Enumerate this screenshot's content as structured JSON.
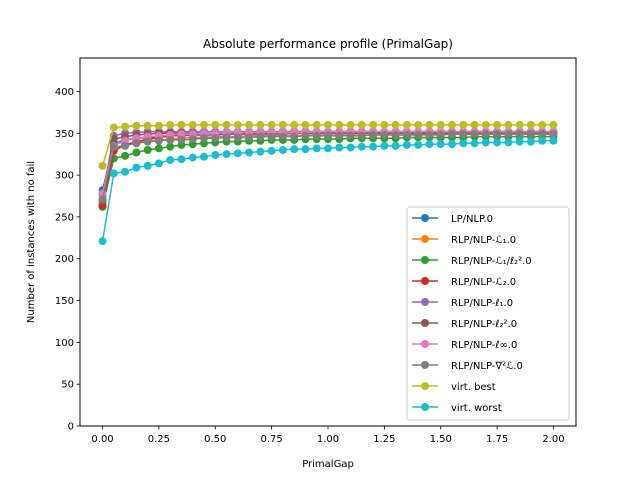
{
  "chart_data": {
    "type": "line",
    "title": "Absolute performance profile (PrimalGap)",
    "xlabel": "PrimalGap",
    "ylabel": "Number of instances with no fail",
    "xlim": [
      -0.1,
      2.1
    ],
    "ylim": [
      0,
      440
    ],
    "xticks": [
      0,
      0.25,
      0.5,
      0.75,
      1.0,
      1.25,
      1.5,
      1.75,
      2.0
    ],
    "xtick_labels": [
      "0.00",
      "0.25",
      "0.50",
      "0.75",
      "1.00",
      "1.25",
      "1.50",
      "1.75",
      "2.00"
    ],
    "yticks": [
      0,
      50,
      100,
      150,
      200,
      250,
      300,
      350,
      400
    ],
    "ytick_labels": [
      "0",
      "50",
      "100",
      "150",
      "200",
      "250",
      "300",
      "350",
      "400"
    ],
    "grid": false,
    "legend_position": "lower-right",
    "x": [
      0,
      0.05,
      0.1,
      0.15,
      0.2,
      0.25,
      0.3,
      0.35,
      0.4,
      0.45,
      0.5,
      0.55,
      0.6,
      0.65,
      0.7,
      0.75,
      0.8,
      0.85,
      0.9,
      0.95,
      1.0,
      1.05,
      1.1,
      1.15,
      1.2,
      1.25,
      1.3,
      1.35,
      1.4,
      1.45,
      1.5,
      1.55,
      1.6,
      1.65,
      1.7,
      1.75,
      1.8,
      1.85,
      1.9,
      1.95,
      2.0
    ],
    "series": [
      {
        "name": "LP/NLP.0",
        "color": "#1f77b4",
        "values": [
          282,
          338,
          342,
          344,
          345,
          346,
          347,
          347,
          348,
          348,
          348,
          349,
          349,
          349,
          349,
          349,
          349,
          350,
          350,
          350,
          350,
          350,
          350,
          350,
          350,
          350,
          350,
          350,
          350,
          350,
          351,
          351,
          351,
          351,
          351,
          351,
          351,
          351,
          351,
          351,
          351
        ]
      },
      {
        "name": "RLP/NLP-ℒ₁.0",
        "color": "#ff7f0e",
        "values": [
          268,
          332,
          336,
          339,
          341,
          342,
          343,
          344,
          345,
          345,
          346,
          346,
          346,
          347,
          347,
          347,
          347,
          347,
          348,
          348,
          348,
          348,
          348,
          348,
          348,
          348,
          348,
          348,
          349,
          349,
          349,
          349,
          349,
          349,
          349,
          349,
          349,
          349,
          349,
          349,
          349
        ]
      },
      {
        "name": "RLP/NLP-ℒ₁/ℓ₂².0",
        "color": "#2ca02c",
        "values": [
          262,
          320,
          323,
          327,
          330,
          332,
          334,
          336,
          337,
          338,
          339,
          340,
          340,
          341,
          341,
          342,
          342,
          342,
          343,
          343,
          343,
          343,
          344,
          344,
          344,
          344,
          344,
          345,
          345,
          345,
          345,
          345,
          345,
          346,
          346,
          346,
          346,
          346,
          346,
          346,
          346
        ]
      },
      {
        "name": "RLP/NLP-ℒ₂.0",
        "color": "#d62728",
        "values": [
          264,
          329,
          336,
          340,
          343,
          345,
          347,
          348,
          349,
          350,
          350,
          350,
          351,
          351,
          351,
          351,
          352,
          352,
          352,
          352,
          352,
          352,
          352,
          352,
          352,
          352,
          352,
          352,
          352,
          352,
          352,
          352,
          352,
          352,
          352,
          352,
          352,
          352,
          352,
          352,
          352
        ]
      },
      {
        "name": "RLP/NLP-ℓ₁.0",
        "color": "#9467bd",
        "values": [
          276,
          347,
          350,
          351,
          352,
          352,
          352,
          352,
          352,
          352,
          352,
          352,
          352,
          352,
          352,
          352,
          352,
          352,
          352,
          352,
          352,
          352,
          352,
          352,
          352,
          352,
          352,
          352,
          352,
          352,
          352,
          352,
          352,
          352,
          352,
          352,
          352,
          352,
          352,
          352,
          352
        ]
      },
      {
        "name": "RLP/NLP-ℓ₂².0",
        "color": "#8c564b",
        "values": [
          270,
          343,
          346,
          348,
          349,
          350,
          350,
          350,
          350,
          350,
          350,
          350,
          350,
          350,
          350,
          350,
          350,
          350,
          350,
          350,
          350,
          350,
          350,
          350,
          350,
          350,
          350,
          350,
          350,
          350,
          350,
          350,
          350,
          350,
          350,
          350,
          350,
          350,
          350,
          350,
          350
        ]
      },
      {
        "name": "RLP/NLP-ℓ∞.0",
        "color": "#e377c2",
        "values": [
          278,
          335,
          341,
          344,
          346,
          347,
          348,
          349,
          349,
          350,
          350,
          351,
          351,
          351,
          351,
          351,
          351,
          351,
          351,
          352,
          352,
          352,
          352,
          352,
          352,
          352,
          352,
          352,
          352,
          352,
          352,
          352,
          352,
          352,
          352,
          352,
          352,
          352,
          352,
          352,
          352
        ]
      },
      {
        "name": "RLP/NLP-∇²ℒ.0",
        "color": "#7f7f7f",
        "values": [
          271,
          334,
          335,
          338,
          340,
          341,
          342,
          342,
          343,
          344,
          344,
          345,
          345,
          345,
          346,
          346,
          346,
          346,
          347,
          347,
          347,
          347,
          347,
          347,
          348,
          348,
          348,
          348,
          348,
          348,
          348,
          349,
          349,
          349,
          349,
          349,
          349,
          349,
          349,
          349,
          349
        ]
      },
      {
        "name": "virt. best",
        "color": "#bcbd22",
        "values": [
          311,
          357,
          358,
          359,
          359,
          359,
          360,
          360,
          360,
          360,
          360,
          360,
          360,
          360,
          360,
          360,
          360,
          360,
          360,
          360,
          360,
          360,
          360,
          360,
          360,
          360,
          360,
          360,
          360,
          360,
          360,
          360,
          360,
          360,
          360,
          360,
          360,
          360,
          360,
          360,
          360
        ]
      },
      {
        "name": "virt. worst",
        "color": "#17becf",
        "values": [
          221,
          302,
          304,
          309,
          311,
          314,
          318,
          319,
          321,
          322,
          324,
          325,
          326,
          327,
          328,
          329,
          330,
          331,
          331,
          332,
          332,
          333,
          333,
          334,
          334,
          335,
          335,
          336,
          336,
          337,
          337,
          337,
          338,
          338,
          339,
          339,
          339,
          340,
          340,
          341,
          341
        ]
      }
    ]
  }
}
